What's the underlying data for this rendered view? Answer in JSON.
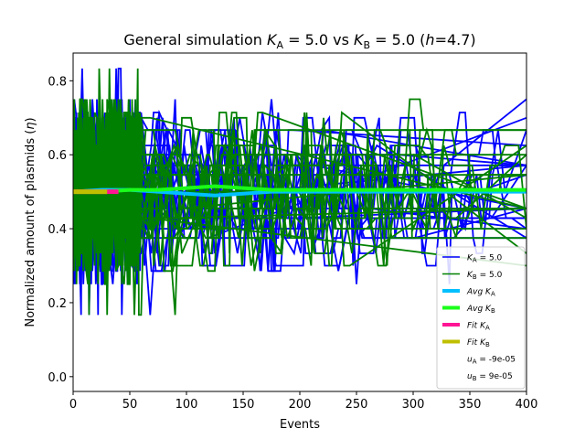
{
  "chart_data": {
    "type": "line",
    "title_parts": {
      "prefix": "General simulation ",
      "ka_sym": "K",
      "ka_sub": "A",
      "ka_val": " = 5.0 vs ",
      "kb_sym": "K",
      "kb_sub": "B",
      "kb_val": " = 5.0 (",
      "h_sym": "h",
      "h_val": "=4.7)"
    },
    "xlabel": "Events",
    "ylabel_parts": {
      "text": "Normalized amount of plasmids (",
      "sym": "η",
      "close": ")"
    },
    "xlim": [
      0,
      400
    ],
    "ylim": [
      -0.04,
      0.875
    ],
    "xticks": [
      0,
      50,
      100,
      150,
      200,
      250,
      300,
      350,
      400
    ],
    "yticks": [
      0.0,
      0.2,
      0.4,
      0.6,
      0.8
    ],
    "ytick_labels": [
      "0.0",
      "0.2",
      "0.4",
      "0.6",
      "0.8"
    ],
    "xtick_labels": [
      "0",
      "50",
      "100",
      "150",
      "200",
      "250",
      "300",
      "350",
      "400"
    ],
    "discrete_levels": [
      0.1667,
      0.25,
      0.2857,
      0.3,
      0.3333,
      0.375,
      0.4,
      0.4286,
      0.4545,
      0.5,
      0.5455,
      0.5714,
      0.6,
      0.625,
      0.6667,
      0.7,
      0.7143,
      0.75,
      0.8333
    ],
    "series": [
      {
        "name_sym": "K",
        "name_sub": "A",
        "name_val": " = 5.0",
        "color": "#0000ff",
        "kind": "raw"
      },
      {
        "name_sym": "K",
        "name_sub": "B",
        "name_val": " = 5.0",
        "color": "#008000",
        "kind": "raw"
      },
      {
        "name_sym": "Avg K",
        "name_sub": "A",
        "name_val": "",
        "color": "#00bfff",
        "kind": "avg",
        "x": [
          0,
          25,
          50,
          75,
          100,
          125,
          150,
          175,
          200,
          225,
          250,
          275,
          300,
          325,
          350,
          375,
          400
        ],
        "y": [
          0.5,
          0.505,
          0.505,
          0.5,
          0.495,
          0.49,
          0.495,
          0.5,
          0.5,
          0.5,
          0.5,
          0.5,
          0.5,
          0.5,
          0.5,
          0.5,
          0.5
        ]
      },
      {
        "name_sym": "Avg K",
        "name_sub": "B",
        "name_val": "",
        "color": "#1aff1a",
        "kind": "avg",
        "x": [
          0,
          25,
          50,
          75,
          100,
          125,
          150,
          175,
          200,
          225,
          250,
          275,
          300,
          325,
          350,
          375,
          400
        ],
        "y": [
          0.5,
          0.5,
          0.505,
          0.505,
          0.51,
          0.515,
          0.51,
          0.505,
          0.505,
          0.505,
          0.505,
          0.505,
          0.505,
          0.505,
          0.505,
          0.505,
          0.505
        ]
      },
      {
        "name_sym": "Fit K",
        "name_sub": "A",
        "name_val": "",
        "color": "#ff1493",
        "kind": "fit",
        "x": [
          0,
          40
        ],
        "y": [
          0.5,
          0.5
        ]
      },
      {
        "name_sym": "Fit K",
        "name_sub": "B",
        "name_val": "",
        "color": "#bfbf00",
        "kind": "fit",
        "x": [
          0,
          30
        ],
        "y": [
          0.5,
          0.5
        ]
      }
    ],
    "legend": {
      "placement": "lower-right",
      "extra": [
        {
          "sym": "u",
          "sub": "A",
          "val": " = -9e-05"
        },
        {
          "sym": "u",
          "sub": "B",
          "val": " = 9e-05"
        }
      ]
    },
    "grid": false
  }
}
